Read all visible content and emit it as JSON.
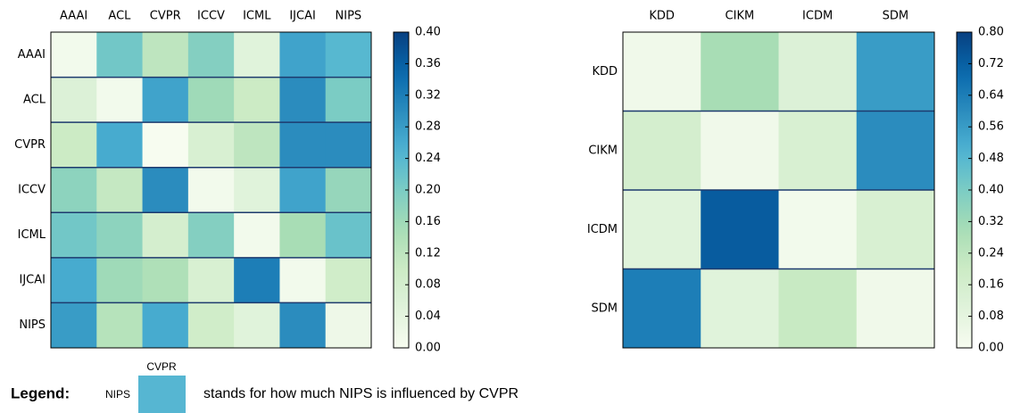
{
  "chart_data": [
    {
      "type": "heatmap",
      "colormap": "GnBu",
      "x": [
        "AAAI",
        "ACL",
        "CVPR",
        "ICCV",
        "ICML",
        "IJCAI",
        "NIPS"
      ],
      "y": [
        "AAAI",
        "ACL",
        "CVPR",
        "ICCV",
        "ICML",
        "IJCAI",
        "NIPS"
      ],
      "values": [
        [
          0.01,
          0.21,
          0.12,
          0.19,
          0.05,
          0.27,
          0.24
        ],
        [
          0.06,
          0.01,
          0.27,
          0.16,
          0.1,
          0.3,
          0.2
        ],
        [
          0.1,
          0.26,
          0.0,
          0.07,
          0.12,
          0.3,
          0.3
        ],
        [
          0.18,
          0.11,
          0.3,
          0.01,
          0.05,
          0.27,
          0.17
        ],
        [
          0.21,
          0.18,
          0.08,
          0.19,
          0.01,
          0.15,
          0.22
        ],
        [
          0.26,
          0.16,
          0.14,
          0.07,
          0.32,
          0.01,
          0.09
        ],
        [
          0.28,
          0.13,
          0.26,
          0.09,
          0.05,
          0.3,
          0.02
        ]
      ],
      "zlim": [
        0,
        0.4
      ],
      "zticks": [
        {
          "value": 0,
          "label": "0.00"
        },
        {
          "value": 0.04,
          "label": "0.04"
        },
        {
          "value": 0.08,
          "label": "0.08"
        },
        {
          "value": 0.12,
          "label": "0.12"
        },
        {
          "value": 0.16,
          "label": "0.16"
        },
        {
          "value": 0.2,
          "label": "0.20"
        },
        {
          "value": 0.24,
          "label": "0.24"
        },
        {
          "value": 0.28,
          "label": "0.28"
        },
        {
          "value": 0.32,
          "label": "0.32"
        },
        {
          "value": 0.36,
          "label": "0.36"
        },
        {
          "value": 0.4,
          "label": "0.40"
        }
      ]
    },
    {
      "type": "heatmap",
      "colormap": "GnBu",
      "x": [
        "KDD",
        "CIKM",
        "ICDM",
        "SDM"
      ],
      "y": [
        "KDD",
        "CIKM",
        "ICDM",
        "SDM"
      ],
      "values": [
        [
          0.03,
          0.3,
          0.12,
          0.56
        ],
        [
          0.16,
          0.03,
          0.14,
          0.6
        ],
        [
          0.1,
          0.73,
          0.02,
          0.14
        ],
        [
          0.64,
          0.1,
          0.21,
          0.03
        ]
      ],
      "zlim": [
        0,
        0.8
      ],
      "zticks": [
        {
          "value": 0,
          "label": "0.00"
        },
        {
          "value": 0.08,
          "label": "0.08"
        },
        {
          "value": 0.16,
          "label": "0.16"
        },
        {
          "value": 0.24,
          "label": "0.24"
        },
        {
          "value": 0.32,
          "label": "0.32"
        },
        {
          "value": 0.4,
          "label": "0.40"
        },
        {
          "value": 0.48,
          "label": "0.48"
        },
        {
          "value": 0.56,
          "label": "0.56"
        },
        {
          "value": 0.64,
          "label": "0.64"
        },
        {
          "value": 0.72,
          "label": "0.72"
        },
        {
          "value": 0.8,
          "label": "0.80"
        }
      ]
    }
  ],
  "legend": {
    "title": "Legend:",
    "row_label": "NIPS",
    "col_label": "CVPR",
    "color": "#56b6d2",
    "text": "stands for how much NIPS is influenced by CVPR"
  }
}
